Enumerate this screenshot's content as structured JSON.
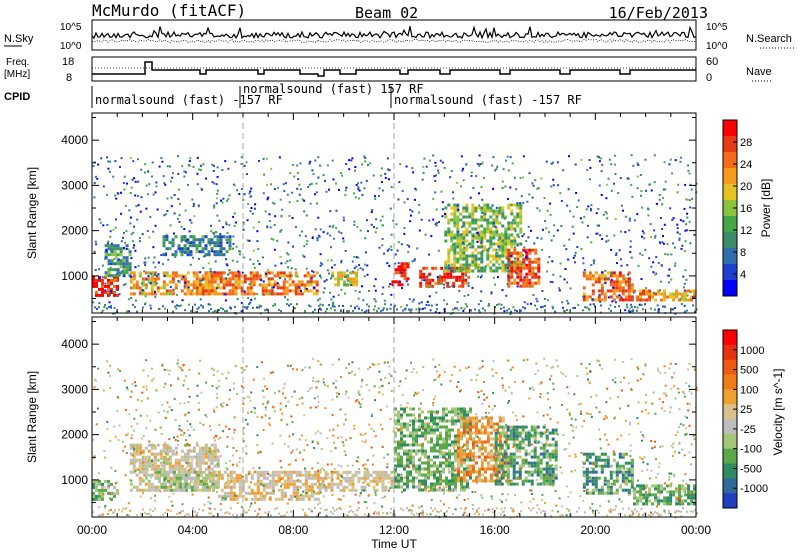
{
  "header": {
    "station": "McMurdo (fitACF)",
    "beam": "Beam 02",
    "date": "16/Feb/2013"
  },
  "panels": {
    "nsky": {
      "left_label": "N.Sky",
      "right_label": "N.Search",
      "left_ticks": [
        "10^5",
        "10^0"
      ],
      "right_ticks": [
        "10^5",
        "10^0"
      ]
    },
    "freq": {
      "left_label_1": "Freq.",
      "left_label_2": "[MHz]",
      "right_label": "Nave",
      "left_ticks": [
        "18",
        "8"
      ],
      "right_ticks": [
        "60",
        "0"
      ]
    },
    "cpid": {
      "label": "CPID",
      "segments": [
        {
          "label": "normalsound (fast) -157 RF"
        },
        {
          "label": "normalsound (fast) 157 RF"
        },
        {
          "label": "normalsound (fast) -157 RF"
        }
      ]
    }
  },
  "y_axis": {
    "label": "Slant Range [km]",
    "ticks": [
      "1000",
      "2000",
      "3000",
      "4000"
    ]
  },
  "x_axis": {
    "label": "Time UT",
    "ticks": [
      "00:00",
      "04:00",
      "08:00",
      "12:00",
      "16:00",
      "20:00",
      "00:00"
    ]
  },
  "colorbars": {
    "power": {
      "label": "Power [dB]",
      "ticks": [
        "4",
        "8",
        "12",
        "16",
        "20",
        "24",
        "28"
      ],
      "colors": [
        "#0000ff",
        "#1e3fd0",
        "#2f6fb0",
        "#3c8c6a",
        "#44a84a",
        "#8bc53f",
        "#e6c322",
        "#f49b1c",
        "#f36b1a",
        "#e83a15",
        "#ff0000"
      ]
    },
    "velocity": {
      "label": "Velocity [m s^-1]",
      "ticks": [
        "1000",
        "500",
        "100",
        "25",
        "-25",
        "-100",
        "-500",
        "-1000"
      ],
      "colors": [
        "#2040c0",
        "#2f6a9a",
        "#2e8b62",
        "#5aa84a",
        "#a0c878",
        "#bdbdbd",
        "#d8c28a",
        "#f0a030",
        "#f07c1a",
        "#ee5a12",
        "#e63010",
        "#ff0000"
      ]
    }
  },
  "chart_data": [
    {
      "type": "heatmap",
      "title": "",
      "xlabel": "Time UT",
      "ylabel": "Slant Range [km]",
      "xlim": [
        0,
        24
      ],
      "ylim": [
        180,
        4600
      ],
      "colorbar": "Power [dB]",
      "clim": [
        0,
        30
      ],
      "echo_regions": [
        {
          "t0": 0.0,
          "t1": 1.0,
          "r0": 600,
          "r1": 1000,
          "value": 27
        },
        {
          "t0": 0.5,
          "t1": 1.5,
          "r0": 1000,
          "r1": 1700,
          "value": 10
        },
        {
          "t0": 1.5,
          "t1": 5.0,
          "r0": 600,
          "r1": 1100,
          "value": 20
        },
        {
          "t0": 2.8,
          "t1": 5.5,
          "r0": 1500,
          "r1": 1900,
          "value": 9
        },
        {
          "t0": 4.0,
          "t1": 9.0,
          "r0": 600,
          "r1": 1100,
          "value": 22
        },
        {
          "t0": 9.5,
          "t1": 10.5,
          "r0": 800,
          "r1": 1100,
          "value": 16
        },
        {
          "t0": 11.9,
          "t1": 12.6,
          "r0": 800,
          "r1": 1300,
          "value": 28
        },
        {
          "t0": 13.0,
          "t1": 15.0,
          "r0": 800,
          "r1": 1200,
          "value": 26
        },
        {
          "t0": 14.0,
          "t1": 17.0,
          "r0": 1100,
          "r1": 2600,
          "value": 14
        },
        {
          "t0": 16.5,
          "t1": 17.8,
          "r0": 800,
          "r1": 1600,
          "value": 25
        },
        {
          "t0": 19.5,
          "t1": 21.5,
          "r0": 500,
          "r1": 1100,
          "value": 23
        },
        {
          "t0": 21.5,
          "t1": 24.0,
          "r0": 450,
          "r1": 700,
          "value": 21
        }
      ]
    },
    {
      "type": "heatmap",
      "title": "",
      "xlabel": "Time UT",
      "ylabel": "Slant Range [km]",
      "xlim": [
        0,
        24
      ],
      "ylim": [
        180,
        4600
      ],
      "colorbar": "Velocity [m s^-1]",
      "clim": [
        -1000,
        1000
      ],
      "echo_regions": [
        {
          "t0": 0.0,
          "t1": 1.0,
          "r0": 600,
          "r1": 1000,
          "value": -300
        },
        {
          "t0": 1.5,
          "t1": 5.0,
          "r0": 800,
          "r1": 1800,
          "value": 0
        },
        {
          "t0": 2.5,
          "t1": 5.0,
          "r0": 800,
          "r1": 1200,
          "value": -200
        },
        {
          "t0": 5.0,
          "t1": 9.0,
          "r0": 600,
          "r1": 1200,
          "value": 80
        },
        {
          "t0": 9.0,
          "t1": 12.0,
          "r0": 800,
          "r1": 1200,
          "value": 60
        },
        {
          "t0": 12.0,
          "t1": 15.0,
          "r0": 800,
          "r1": 2600,
          "value": -400
        },
        {
          "t0": 14.5,
          "t1": 16.5,
          "r0": 1000,
          "r1": 2400,
          "value": 300
        },
        {
          "t0": 16.0,
          "t1": 18.5,
          "r0": 900,
          "r1": 2200,
          "value": -500
        },
        {
          "t0": 19.5,
          "t1": 21.5,
          "r0": 700,
          "r1": 1600,
          "value": -500
        },
        {
          "t0": 21.5,
          "t1": 24.0,
          "r0": 500,
          "r1": 900,
          "value": -400
        }
      ]
    }
  ]
}
